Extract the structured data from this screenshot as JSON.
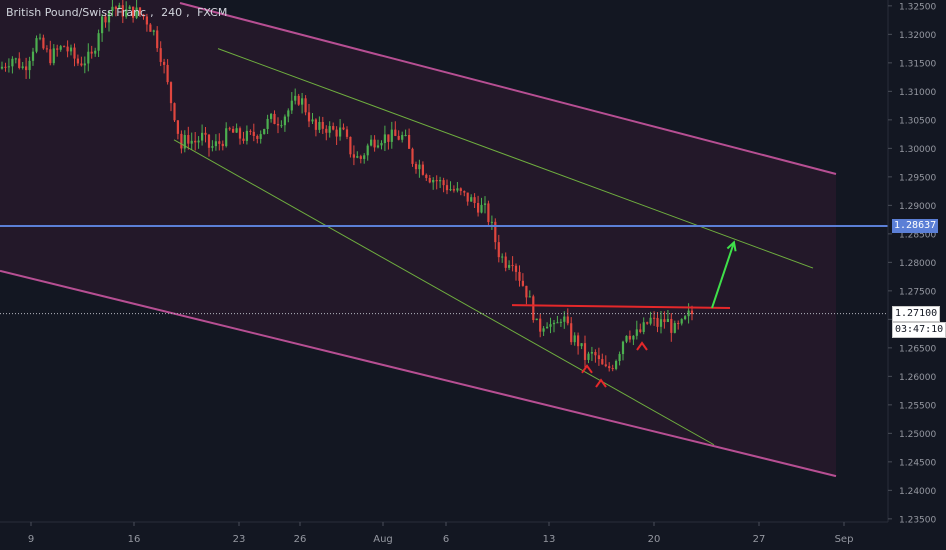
{
  "header": {
    "instrument": "British Pound/Swiss Franc",
    "interval": "240",
    "source": "FXCM"
  },
  "price_axis": {
    "ticks": [
      "1.32500",
      "1.32000",
      "1.31500",
      "1.31000",
      "1.30500",
      "1.30000",
      "1.29500",
      "1.29000",
      "1.28500",
      "1.28000",
      "1.27500",
      "1.27000",
      "1.26500",
      "1.26000",
      "1.25500",
      "1.25000",
      "1.24500",
      "1.24000",
      "1.23500"
    ],
    "horizontal_level_label": "1.28637",
    "last_price_label": "1.27100",
    "countdown_label": "03:47:10"
  },
  "time_axis": {
    "labels": [
      "9",
      "16",
      "23",
      "26",
      "Aug",
      "6",
      "13",
      "20",
      "27",
      "Sep"
    ]
  },
  "colors": {
    "background": "#131722",
    "channel_fill": "#2a1a2c",
    "channel_line": "#b74f93",
    "inner_line": "#6fae3f",
    "horizontal_level": "#5b7fd6",
    "neckline": "#e5282a",
    "target_arrow": "#3fe04a",
    "bull_candle": "#4caf50",
    "bear_candle": "#e0463f",
    "marker": "#e5282a",
    "axis_text": "#9598a1"
  },
  "chart_data": {
    "type": "candlestick",
    "title": "",
    "ylim": [
      1.233,
      1.3255
    ],
    "x_tick_labels": [
      "9",
      "16",
      "23",
      "26",
      "Aug",
      "6",
      "13",
      "20",
      "27",
      "Sep"
    ],
    "price_path": [
      [
        0,
        1.314
      ],
      [
        12,
        1.316
      ],
      [
        24,
        1.314
      ],
      [
        36,
        1.319
      ],
      [
        50,
        1.316
      ],
      [
        64,
        1.318
      ],
      [
        78,
        1.315
      ],
      [
        92,
        1.316
      ],
      [
        100,
        1.322
      ],
      [
        112,
        1.325
      ],
      [
        120,
        1.324
      ],
      [
        135,
        1.324
      ],
      [
        145,
        1.323
      ],
      [
        155,
        1.32
      ],
      [
        163,
        1.315
      ],
      [
        170,
        1.309
      ],
      [
        176,
        1.305
      ],
      [
        181,
        1.3
      ],
      [
        187,
        1.302
      ],
      [
        194,
        1.301
      ],
      [
        202,
        1.302
      ],
      [
        210,
        1.3
      ],
      [
        220,
        1.301
      ],
      [
        230,
        1.303
      ],
      [
        240,
        1.302
      ],
      [
        250,
        1.302
      ],
      [
        260,
        1.303
      ],
      [
        270,
        1.305
      ],
      [
        280,
        1.305
      ],
      [
        290,
        1.307
      ],
      [
        300,
        1.309
      ],
      [
        308,
        1.306
      ],
      [
        316,
        1.303
      ],
      [
        324,
        1.304
      ],
      [
        332,
        1.303
      ],
      [
        342,
        1.303
      ],
      [
        352,
        1.299
      ],
      [
        360,
        1.298
      ],
      [
        370,
        1.301
      ],
      [
        380,
        1.302
      ],
      [
        392,
        1.302
      ],
      [
        404,
        1.302
      ],
      [
        412,
        1.298
      ],
      [
        420,
        1.297
      ],
      [
        430,
        1.295
      ],
      [
        440,
        1.294
      ],
      [
        450,
        1.293
      ],
      [
        460,
        1.292
      ],
      [
        470,
        1.291
      ],
      [
        478,
        1.29
      ],
      [
        486,
        1.289
      ],
      [
        492,
        1.286
      ],
      [
        498,
        1.282
      ],
      [
        505,
        1.28
      ],
      [
        512,
        1.281
      ],
      [
        518,
        1.278
      ],
      [
        526,
        1.275
      ],
      [
        532,
        1.272
      ],
      [
        538,
        1.268
      ],
      [
        546,
        1.27
      ],
      [
        555,
        1.268
      ],
      [
        562,
        1.271
      ],
      [
        570,
        1.267
      ],
      [
        578,
        1.266
      ],
      [
        586,
        1.263
      ],
      [
        594,
        1.264
      ],
      [
        600,
        1.262
      ],
      [
        606,
        1.261
      ],
      [
        612,
        1.262
      ],
      [
        618,
        1.264
      ],
      [
        626,
        1.268
      ],
      [
        634,
        1.267
      ],
      [
        642,
        1.268
      ],
      [
        650,
        1.27
      ],
      [
        658,
        1.269
      ],
      [
        666,
        1.27
      ],
      [
        674,
        1.268
      ],
      [
        682,
        1.269
      ],
      [
        690,
        1.271
      ],
      [
        695,
        1.271
      ]
    ],
    "horizontal_level": 1.28637,
    "last_price": 1.271,
    "countdown": "03:47:10",
    "annotations": {
      "outer_channel": {
        "upper": [
          [
            180,
            1.3255
          ],
          [
            836,
            1.2955
          ]
        ],
        "lower": [
          [
            0,
            1.2785
          ],
          [
            836,
            1.2425
          ]
        ]
      },
      "inner_wedge": {
        "upper": [
          [
            218,
            1.3175
          ],
          [
            813,
            1.279
          ]
        ],
        "lower": [
          [
            174,
            1.3015
          ],
          [
            714,
            1.248
          ]
        ]
      },
      "neckline": [
        [
          512,
          1.2725
        ],
        [
          730,
          1.272
        ]
      ],
      "breakout_arrow": [
        [
          712,
          1.272
        ],
        [
          734,
          1.2835
        ]
      ],
      "swing_markers": [
        [
          587,
          1.2615
        ],
        [
          601,
          1.259
        ],
        [
          642,
          1.2655
        ]
      ]
    },
    "grid": false,
    "legend": "none"
  }
}
